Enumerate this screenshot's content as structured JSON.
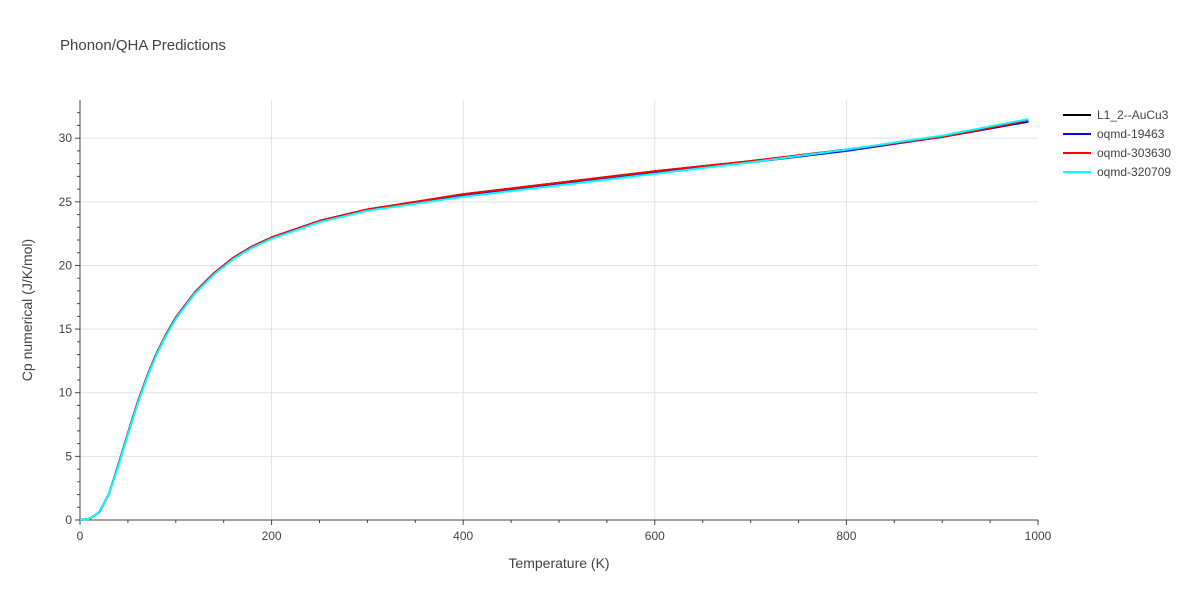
{
  "chart_data": {
    "type": "line",
    "title": "Phonon/QHA Predictions",
    "xlabel": "Temperature (K)",
    "ylabel": "Cp numerical (J/K/mol)",
    "xlim": [
      0,
      1000
    ],
    "ylim": [
      0,
      33
    ],
    "x_ticks": [
      0,
      200,
      400,
      600,
      800,
      1000
    ],
    "y_ticks": [
      0,
      5,
      10,
      15,
      20,
      25,
      30
    ],
    "grid": true,
    "legend_position": "top-right",
    "series": [
      {
        "name": "L1_2--AuCu3",
        "color": "#000000",
        "x": [
          0,
          10,
          20,
          30,
          40,
          50,
          60,
          70,
          80,
          90,
          100,
          120,
          140,
          160,
          180,
          200,
          250,
          300,
          400,
          500,
          600,
          700,
          800,
          900,
          990
        ],
        "y": [
          0,
          0.1,
          0.6,
          2.0,
          4.3,
          6.8,
          9.2,
          11.3,
          13.1,
          14.6,
          15.9,
          17.9,
          19.4,
          20.6,
          21.5,
          22.2,
          23.5,
          24.4,
          25.6,
          26.5,
          27.4,
          28.2,
          29.1,
          30.1,
          31.3
        ]
      },
      {
        "name": "oqmd-19463",
        "color": "#0000ff",
        "x": [
          0,
          10,
          20,
          30,
          40,
          50,
          60,
          70,
          80,
          90,
          100,
          120,
          140,
          160,
          180,
          200,
          250,
          300,
          400,
          500,
          600,
          700,
          800,
          900,
          990
        ],
        "y": [
          0,
          0.1,
          0.6,
          2.0,
          4.3,
          6.8,
          9.2,
          11.3,
          13.1,
          14.6,
          15.9,
          17.9,
          19.4,
          20.6,
          21.5,
          22.2,
          23.5,
          24.4,
          25.5,
          26.4,
          27.3,
          28.1,
          29.0,
          30.1,
          31.3
        ]
      },
      {
        "name": "oqmd-303630",
        "color": "#ff0000",
        "x": [
          0,
          10,
          20,
          30,
          40,
          50,
          60,
          70,
          80,
          90,
          100,
          120,
          140,
          160,
          180,
          200,
          250,
          300,
          400,
          500,
          600,
          700,
          800,
          900,
          990
        ],
        "y": [
          0,
          0.1,
          0.6,
          2.0,
          4.3,
          6.8,
          9.2,
          11.3,
          13.1,
          14.6,
          15.9,
          17.9,
          19.4,
          20.6,
          21.5,
          22.2,
          23.5,
          24.4,
          25.6,
          26.5,
          27.4,
          28.2,
          29.1,
          30.1,
          31.4
        ]
      },
      {
        "name": "oqmd-320709",
        "color": "#00ffff",
        "x": [
          0,
          10,
          20,
          30,
          40,
          50,
          60,
          70,
          80,
          90,
          100,
          120,
          140,
          160,
          180,
          200,
          250,
          300,
          400,
          500,
          600,
          700,
          800,
          900,
          990
        ],
        "y": [
          0,
          0.1,
          0.6,
          2.0,
          4.2,
          6.7,
          9.1,
          11.2,
          13.0,
          14.5,
          15.8,
          17.8,
          19.3,
          20.5,
          21.4,
          22.1,
          23.4,
          24.3,
          25.4,
          26.3,
          27.2,
          28.1,
          29.1,
          30.2,
          31.5
        ]
      }
    ]
  }
}
